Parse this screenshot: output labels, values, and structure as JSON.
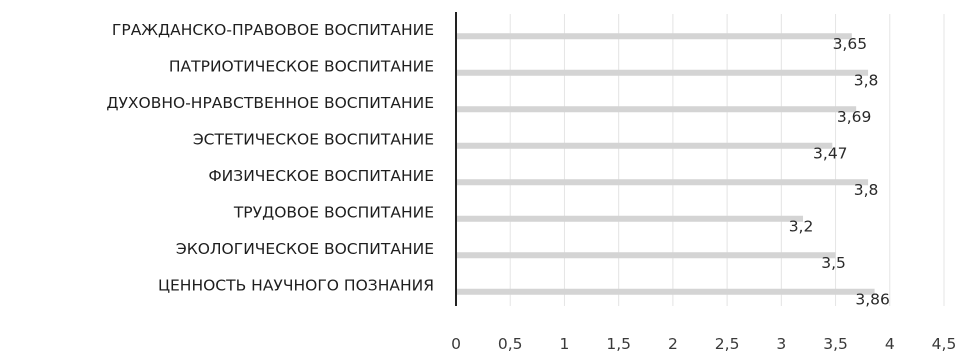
{
  "chart_data": {
    "type": "bar",
    "orientation": "horizontal",
    "categories": [
      "ГРАЖДАНСКО-ПРАВОВОЕ ВОСПИТАНИЕ",
      "ПАТРИОТИЧЕСКОЕ ВОСПИТАНИЕ",
      "ДУХОВНО-НРАВСТВЕННОЕ ВОСПИТАНИЕ",
      "ЭСТЕТИЧЕСКОЕ ВОСПИТАНИЕ",
      "ФИЗИЧЕСКОЕ ВОСПИТАНИЕ",
      "ТРУДОВОЕ ВОСПИТАНИЕ",
      "ЭКОЛОГИЧЕСКОЕ ВОСПИТАНИЕ",
      "ЦЕННОСТЬ НАУЧНОГО ПОЗНАНИЯ"
    ],
    "values": [
      3.65,
      3.8,
      3.69,
      3.47,
      3.8,
      3.2,
      3.5,
      3.86
    ],
    "data_labels": [
      "3,65",
      "3,8",
      "3,69",
      "3,47",
      "3,8",
      "3,2",
      "3,5",
      "3,86"
    ],
    "xticks": [
      "0",
      "0,5",
      "1",
      "1,5",
      "2",
      "2,5",
      "3",
      "3,5",
      "4",
      "4,5"
    ],
    "xlim": [
      0,
      4.5
    ],
    "title": "",
    "xlabel": "",
    "ylabel": "",
    "grid": true,
    "legend": "none",
    "bar_color": "#d4d4d4"
  }
}
